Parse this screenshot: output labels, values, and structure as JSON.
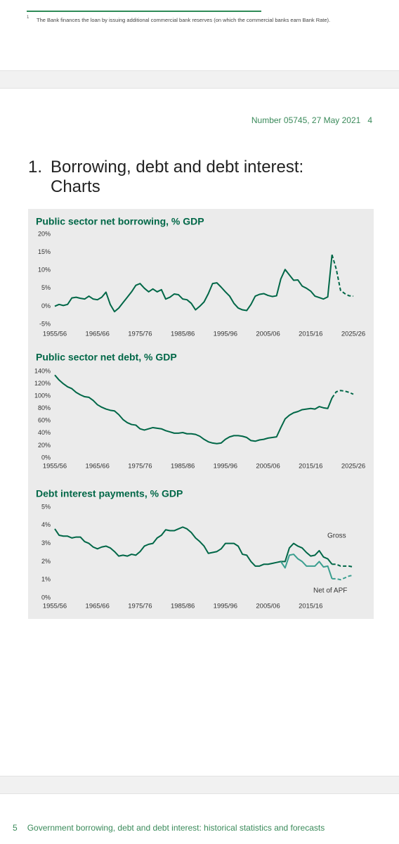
{
  "footnote": {
    "marker": "1",
    "text": "The Bank finances the loan by issuing additional commercial bank reserves (on which the commercial banks earn Bank Rate)."
  },
  "header": {
    "text": "Number 05745, 27 May 2021",
    "page": "4"
  },
  "heading": {
    "number": "1.",
    "title": "Borrowing, debt and debt interest: Charts"
  },
  "chart_data": [
    {
      "type": "line",
      "title": "Public sector net borrowing, % GDP",
      "categories": [
        "1955/56",
        null,
        null,
        null,
        null,
        null,
        null,
        null,
        null,
        null,
        "1965/66",
        null,
        null,
        null,
        null,
        null,
        null,
        null,
        null,
        null,
        "1975/76",
        null,
        null,
        null,
        null,
        null,
        null,
        null,
        null,
        null,
        "1985/86",
        null,
        null,
        null,
        null,
        null,
        null,
        null,
        null,
        null,
        "1995/96",
        null,
        null,
        null,
        null,
        null,
        null,
        null,
        null,
        null,
        "2005/06",
        null,
        null,
        null,
        null,
        null,
        null,
        null,
        null,
        null,
        "2015/16",
        null,
        null,
        null,
        null,
        null,
        null,
        null,
        null,
        null,
        "2025/26"
      ],
      "ylim": [
        -5,
        20
      ],
      "yticks": [
        {
          "value": -5,
          "label": "-5%"
        },
        {
          "value": 0,
          "label": "0%"
        },
        {
          "value": 5,
          "label": "5%"
        },
        {
          "value": 10,
          "label": "10%"
        },
        {
          "value": 15,
          "label": "15%"
        },
        {
          "value": 20,
          "label": "20%"
        }
      ],
      "series": [
        {
          "color": "#006747",
          "values": [
            0,
            0.5,
            0.2,
            0.5,
            2.3,
            2.5,
            2.2,
            2.0,
            2.8,
            2.0,
            1.8,
            2.5,
            3.9,
            0.5,
            -1.5,
            -0.5,
            1.0,
            2.5,
            4.0,
            5.8,
            6.3,
            5.0,
            4.0,
            4.8,
            4.0,
            4.6,
            2.0,
            2.5,
            3.4,
            3.2,
            2.0,
            1.8,
            0.8,
            -1.0,
            0,
            1.2,
            3.5,
            6.3,
            6.5,
            5.3,
            4.0,
            2.8,
            0.8,
            -0.5,
            -1.0,
            -1.2,
            0.5,
            2.8,
            3.3,
            3.5,
            3.0,
            2.7,
            2.9,
            7.6,
            10.2,
            8.7,
            7.2,
            7.3,
            5.6,
            5.0,
            4.2,
            2.8,
            2.4,
            2.0,
            2.6,
            14.3,
            null,
            null,
            null,
            null,
            null
          ]
        },
        {
          "color": "#006747",
          "dashed": true,
          "values": [
            null,
            null,
            null,
            null,
            null,
            null,
            null,
            null,
            null,
            null,
            null,
            null,
            null,
            null,
            null,
            null,
            null,
            null,
            null,
            null,
            null,
            null,
            null,
            null,
            null,
            null,
            null,
            null,
            null,
            null,
            null,
            null,
            null,
            null,
            null,
            null,
            null,
            null,
            null,
            null,
            null,
            null,
            null,
            null,
            null,
            null,
            null,
            null,
            null,
            null,
            null,
            null,
            null,
            null,
            null,
            null,
            null,
            null,
            null,
            null,
            null,
            null,
            null,
            null,
            null,
            14.3,
            10.3,
            4.4,
            3.5,
            2.9,
            2.8
          ]
        }
      ]
    },
    {
      "type": "line",
      "title": "Public sector net debt, % GDP",
      "categories": [
        "1955/56",
        null,
        null,
        null,
        null,
        null,
        null,
        null,
        null,
        null,
        "1965/66",
        null,
        null,
        null,
        null,
        null,
        null,
        null,
        null,
        null,
        "1975/76",
        null,
        null,
        null,
        null,
        null,
        null,
        null,
        null,
        null,
        "1985/86",
        null,
        null,
        null,
        null,
        null,
        null,
        null,
        null,
        null,
        "1995/96",
        null,
        null,
        null,
        null,
        null,
        null,
        null,
        null,
        null,
        "2005/06",
        null,
        null,
        null,
        null,
        null,
        null,
        null,
        null,
        null,
        "2015/16",
        null,
        null,
        null,
        null,
        null,
        null,
        null,
        null,
        null,
        "2025/26"
      ],
      "ylim": [
        0,
        140
      ],
      "yticks": [
        {
          "value": 0,
          "label": "0%"
        },
        {
          "value": 20,
          "label": "20%"
        },
        {
          "value": 40,
          "label": "40%"
        },
        {
          "value": 60,
          "label": "60%"
        },
        {
          "value": 80,
          "label": "80%"
        },
        {
          "value": 100,
          "label": "100%"
        },
        {
          "value": 120,
          "label": "120%"
        },
        {
          "value": 140,
          "label": "140%"
        }
      ],
      "series": [
        {
          "color": "#006747",
          "values": [
            134,
            126,
            120,
            115,
            112,
            106,
            102,
            99,
            98,
            93,
            86,
            82,
            79,
            77,
            76,
            70,
            62,
            57,
            54,
            53,
            47,
            45,
            47,
            49,
            48,
            47,
            44,
            42,
            40,
            40,
            41,
            39,
            39,
            38,
            35,
            30,
            26,
            24,
            23,
            24,
            30,
            34,
            36,
            36,
            35,
            33,
            28,
            27,
            29,
            30,
            32,
            33,
            34,
            49,
            63,
            69,
            73,
            75,
            78,
            79,
            80,
            79,
            83,
            81,
            80,
            97,
            null,
            null,
            null,
            null,
            null
          ]
        },
        {
          "color": "#006747",
          "dashed": true,
          "values": [
            null,
            null,
            null,
            null,
            null,
            null,
            null,
            null,
            null,
            null,
            null,
            null,
            null,
            null,
            null,
            null,
            null,
            null,
            null,
            null,
            null,
            null,
            null,
            null,
            null,
            null,
            null,
            null,
            null,
            null,
            null,
            null,
            null,
            null,
            null,
            null,
            null,
            null,
            null,
            null,
            null,
            null,
            null,
            null,
            null,
            null,
            null,
            null,
            null,
            null,
            null,
            null,
            null,
            null,
            null,
            null,
            null,
            null,
            null,
            null,
            null,
            null,
            null,
            null,
            null,
            97,
            107,
            109,
            108,
            106,
            103
          ]
        }
      ]
    },
    {
      "type": "line",
      "title": "Debt interest payments, % GDP",
      "categories": [
        "1955/56",
        null,
        null,
        null,
        null,
        null,
        null,
        null,
        null,
        null,
        "1965/66",
        null,
        null,
        null,
        null,
        null,
        null,
        null,
        null,
        null,
        "1975/76",
        null,
        null,
        null,
        null,
        null,
        null,
        null,
        null,
        null,
        "1985/86",
        null,
        null,
        null,
        null,
        null,
        null,
        null,
        null,
        null,
        "1995/96",
        null,
        null,
        null,
        null,
        null,
        null,
        null,
        null,
        null,
        "2005/06",
        null,
        null,
        null,
        null,
        null,
        null,
        null,
        null,
        null,
        "2015/16",
        null,
        null,
        null,
        null,
        null,
        null,
        null,
        null,
        null,
        null
      ],
      "ylim": [
        0,
        5
      ],
      "yticks": [
        {
          "value": 0,
          "label": "0%"
        },
        {
          "value": 1,
          "label": "1%"
        },
        {
          "value": 2,
          "label": "2%"
        },
        {
          "value": 3,
          "label": "3%"
        },
        {
          "value": 4,
          "label": "4%"
        },
        {
          "value": 5,
          "label": "5%"
        }
      ],
      "series": [
        {
          "name": "Gross",
          "color": "#006747",
          "values": [
            3.8,
            3.45,
            3.4,
            3.4,
            3.3,
            3.35,
            3.35,
            3.1,
            3.0,
            2.8,
            2.7,
            2.8,
            2.85,
            2.75,
            2.55,
            2.3,
            2.35,
            2.3,
            2.4,
            2.35,
            2.55,
            2.85,
            2.95,
            3.0,
            3.3,
            3.45,
            3.75,
            3.7,
            3.7,
            3.8,
            3.9,
            3.8,
            3.6,
            3.3,
            3.1,
            2.85,
            2.45,
            2.5,
            2.55,
            2.7,
            3.0,
            3.0,
            3.0,
            2.85,
            2.4,
            2.35,
            2.0,
            1.75,
            1.75,
            1.85,
            1.85,
            1.9,
            1.95,
            2.0,
            2.0,
            2.75,
            3.0,
            2.85,
            2.75,
            2.5,
            2.3,
            2.35,
            2.6,
            2.25,
            2.15,
            1.85,
            null,
            null,
            null,
            null,
            null
          ]
        },
        {
          "color": "#006747",
          "dashed": true,
          "values": [
            null,
            null,
            null,
            null,
            null,
            null,
            null,
            null,
            null,
            null,
            null,
            null,
            null,
            null,
            null,
            null,
            null,
            null,
            null,
            null,
            null,
            null,
            null,
            null,
            null,
            null,
            null,
            null,
            null,
            null,
            null,
            null,
            null,
            null,
            null,
            null,
            null,
            null,
            null,
            null,
            null,
            null,
            null,
            null,
            null,
            null,
            null,
            null,
            null,
            null,
            null,
            null,
            null,
            null,
            null,
            null,
            null,
            null,
            null,
            null,
            null,
            null,
            null,
            null,
            null,
            1.85,
            1.85,
            1.75,
            1.75,
            1.75,
            1.7
          ]
        },
        {
          "name": "Net of APF",
          "color": "#3a9e8f",
          "values": [
            null,
            null,
            null,
            null,
            null,
            null,
            null,
            null,
            null,
            null,
            null,
            null,
            null,
            null,
            null,
            null,
            null,
            null,
            null,
            null,
            null,
            null,
            null,
            null,
            null,
            null,
            null,
            null,
            null,
            null,
            null,
            null,
            null,
            null,
            null,
            null,
            null,
            null,
            null,
            null,
            null,
            null,
            null,
            null,
            null,
            null,
            null,
            null,
            null,
            null,
            null,
            null,
            null,
            2.0,
            1.65,
            2.35,
            2.4,
            2.15,
            2.0,
            1.75,
            1.75,
            1.75,
            2.0,
            1.7,
            1.75,
            1.05,
            null,
            null,
            null,
            null,
            null
          ]
        },
        {
          "color": "#3a9e8f",
          "dashed": true,
          "values": [
            null,
            null,
            null,
            null,
            null,
            null,
            null,
            null,
            null,
            null,
            null,
            null,
            null,
            null,
            null,
            null,
            null,
            null,
            null,
            null,
            null,
            null,
            null,
            null,
            null,
            null,
            null,
            null,
            null,
            null,
            null,
            null,
            null,
            null,
            null,
            null,
            null,
            null,
            null,
            null,
            null,
            null,
            null,
            null,
            null,
            null,
            null,
            null,
            null,
            null,
            null,
            null,
            null,
            null,
            null,
            null,
            null,
            null,
            null,
            null,
            null,
            null,
            null,
            null,
            null,
            1.05,
            1.05,
            1.0,
            1.1,
            1.2,
            1.25
          ]
        }
      ]
    }
  ],
  "footer": {
    "page": "5",
    "text": "Government borrowing, debt and debt interest: historical statistics and forecasts"
  }
}
